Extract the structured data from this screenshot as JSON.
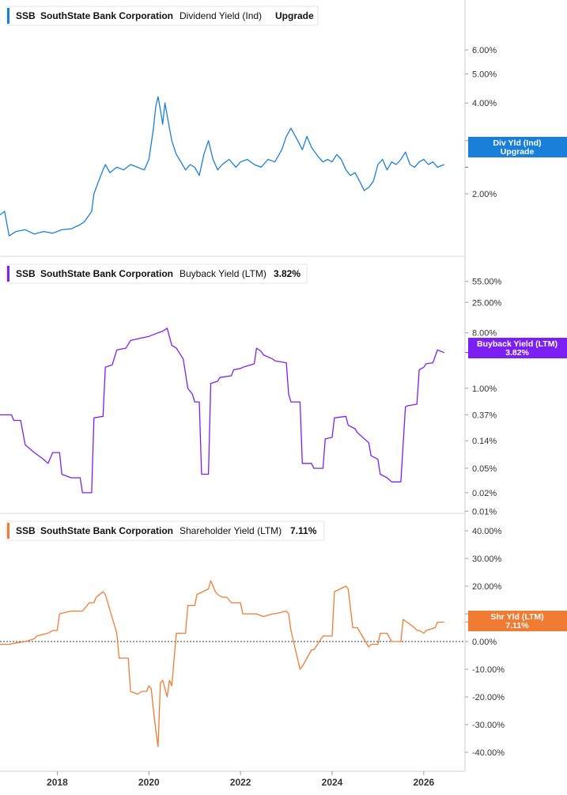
{
  "chart_data": [
    {
      "type": "line",
      "ticker": "SSB",
      "company": "SouthState Bank Corporation",
      "metric": "Dividend Yield (Ind)",
      "value_label": "Upgrade",
      "badge": [
        "Div Yld (Ind)",
        "Upgrade"
      ],
      "color": "#1a7fd9",
      "yscale": "log",
      "ylim": [
        1.35,
        6.9
      ],
      "y_ticks": [
        2,
        3,
        4,
        5,
        6
      ],
      "y_tick_labels": [
        "2.00%",
        "3.00%",
        "4.00%",
        "5.00%",
        "6.00%"
      ],
      "badge_value": 2.45,
      "series": [
        {
          "x": [
            2016.75,
            2016.85,
            2016.95,
            2017.1,
            2017.3,
            2017.5,
            2017.7,
            2017.9,
            2018.1,
            2018.3,
            2018.5,
            2018.6,
            2018.75,
            2018.8,
            2018.9,
            2019.0,
            2019.05,
            2019.15,
            2019.3,
            2019.45,
            2019.6,
            2019.75,
            2019.9,
            2020.0,
            2020.1,
            2020.15,
            2020.2,
            2020.25,
            2020.3,
            2020.35,
            2020.45,
            2020.5,
            2020.6,
            2020.7,
            2020.8,
            2020.9,
            2021.0,
            2021.1,
            2021.2,
            2021.3,
            2021.4,
            2021.5,
            2021.6,
            2021.75,
            2021.9,
            2022.0,
            2022.15,
            2022.3,
            2022.45,
            2022.6,
            2022.75,
            2022.9,
            2023.0,
            2023.1,
            2023.25,
            2023.35,
            2023.45,
            2023.55,
            2023.7,
            2023.8,
            2023.9,
            2024.0,
            2024.1,
            2024.2,
            2024.3,
            2024.4,
            2024.5,
            2024.6,
            2024.7,
            2024.8,
            2024.9,
            2025.0,
            2025.1,
            2025.2,
            2025.3,
            2025.4,
            2025.5,
            2025.6,
            2025.7,
            2025.8,
            2025.9,
            2026.0,
            2026.1,
            2026.2,
            2026.3,
            2026.45
          ],
          "y": [
            1.7,
            1.75,
            1.45,
            1.5,
            1.52,
            1.47,
            1.5,
            1.48,
            1.52,
            1.53,
            1.58,
            1.62,
            1.75,
            2.0,
            2.2,
            2.4,
            2.5,
            2.35,
            2.45,
            2.4,
            2.5,
            2.45,
            2.4,
            2.6,
            3.3,
            3.9,
            4.2,
            3.8,
            3.4,
            4.0,
            3.3,
            3.0,
            2.7,
            2.55,
            2.4,
            2.5,
            2.45,
            2.3,
            2.7,
            3.0,
            2.6,
            2.4,
            2.5,
            2.6,
            2.45,
            2.55,
            2.6,
            2.5,
            2.45,
            2.6,
            2.55,
            2.8,
            3.1,
            3.3,
            3.0,
            2.8,
            3.1,
            2.85,
            2.65,
            2.55,
            2.6,
            2.55,
            2.7,
            2.6,
            2.4,
            2.3,
            2.35,
            2.2,
            2.05,
            2.1,
            2.2,
            2.5,
            2.6,
            2.4,
            2.55,
            2.5,
            2.6,
            2.75,
            2.5,
            2.45,
            2.55,
            2.6,
            2.5,
            2.55,
            2.45,
            2.5
          ]
        }
      ]
    },
    {
      "type": "line",
      "ticker": "SSB",
      "company": "SouthState Bank Corporation",
      "metric": "Buyback Yield (LTM)",
      "value_label": "3.82%",
      "badge": [
        "Buyback Yield (LTM)",
        "3.82%"
      ],
      "color": "#7c1ff2",
      "yscale": "log",
      "ylim": [
        0.0095,
        80
      ],
      "y_ticks": [
        0.01,
        0.02,
        0.05,
        0.14,
        0.37,
        1.0,
        8.0,
        25.0,
        55.0
      ],
      "y_tick_labels": [
        "0.01%",
        "0.02%",
        "0.05%",
        "0.14%",
        "0.37%",
        "1.00%",
        "8.00%",
        "25.00%",
        "55.00%"
      ],
      "badge_value": 3.82,
      "series": [
        {
          "x": [
            2016.75,
            2017.0,
            2017.05,
            2017.2,
            2017.3,
            2017.5,
            2017.7,
            2017.8,
            2017.9,
            2018.05,
            2018.1,
            2018.3,
            2018.5,
            2018.55,
            2018.75,
            2018.8,
            2019.0,
            2019.05,
            2019.2,
            2019.3,
            2019.5,
            2019.6,
            2019.8,
            2020.0,
            2020.2,
            2020.3,
            2020.4,
            2020.5,
            2020.6,
            2020.75,
            2020.85,
            2020.95,
            2021.0,
            2021.1,
            2021.15,
            2021.3,
            2021.35,
            2021.5,
            2021.55,
            2021.8,
            2021.85,
            2022.0,
            2022.05,
            2022.3,
            2022.35,
            2022.45,
            2022.5,
            2022.7,
            2022.75,
            2023.0,
            2023.05,
            2023.1,
            2023.3,
            2023.35,
            2023.55,
            2023.6,
            2023.8,
            2023.85,
            2024.0,
            2024.05,
            2024.3,
            2024.35,
            2024.5,
            2024.55,
            2024.8,
            2024.85,
            2025.0,
            2025.05,
            2025.2,
            2025.3,
            2025.5,
            2025.6,
            2025.65,
            2025.85,
            2025.9,
            2026.0,
            2026.05,
            2026.2,
            2026.3,
            2026.45
          ],
          "y": [
            0.37,
            0.37,
            0.3,
            0.3,
            0.12,
            0.09,
            0.07,
            0.06,
            0.09,
            0.09,
            0.04,
            0.035,
            0.035,
            0.02,
            0.02,
            0.33,
            0.35,
            2.2,
            2.4,
            4.2,
            4.5,
            6.0,
            6.5,
            7.0,
            8.0,
            8.5,
            9.5,
            5.0,
            4.5,
            3.0,
            1.0,
            0.8,
            0.6,
            0.6,
            0.04,
            0.04,
            1.2,
            1.3,
            1.5,
            1.6,
            2.0,
            2.1,
            2.2,
            2.5,
            4.5,
            4.0,
            3.5,
            3.0,
            2.8,
            2.6,
            0.8,
            0.6,
            0.6,
            0.06,
            0.06,
            0.05,
            0.05,
            0.15,
            0.16,
            0.33,
            0.35,
            0.25,
            0.22,
            0.19,
            0.13,
            0.08,
            0.07,
            0.04,
            0.035,
            0.03,
            0.03,
            0.5,
            0.52,
            0.55,
            2.0,
            2.2,
            2.5,
            2.6,
            4.2,
            3.8
          ]
        }
      ]
    },
    {
      "type": "line",
      "ticker": "SSB",
      "company": "SouthState Bank Corporation",
      "metric": "Shareholder Yield (LTM)",
      "value_label": "7.11%",
      "badge": [
        "Shr Yld (LTM)",
        "7.11%"
      ],
      "color": "#f07b32",
      "yscale": "linear",
      "ylim": [
        -42,
        42
      ],
      "y_ticks": [
        -40,
        -30,
        -20,
        -10,
        0,
        10,
        20,
        30,
        40
      ],
      "y_tick_labels": [
        "-40.00%",
        "-30.00%",
        "-20.00%",
        "-10.00%",
        "0.00%",
        "10.00%",
        "20.00%",
        "30.00%",
        "40.00%"
      ],
      "badge_value": 7.11,
      "zero_line": true,
      "series": [
        {
          "x": [
            2016.75,
            2016.95,
            2017.1,
            2017.3,
            2017.5,
            2017.55,
            2017.8,
            2017.9,
            2018.0,
            2018.05,
            2018.3,
            2018.35,
            2018.55,
            2018.7,
            2018.8,
            2018.85,
            2019.0,
            2019.05,
            2019.3,
            2019.35,
            2019.55,
            2019.6,
            2019.75,
            2019.85,
            2019.95,
            2020.0,
            2020.05,
            2020.1,
            2020.15,
            2020.2,
            2020.25,
            2020.3,
            2020.4,
            2020.45,
            2020.5,
            2020.6,
            2020.8,
            2020.85,
            2021.0,
            2021.05,
            2021.3,
            2021.35,
            2021.45,
            2021.5,
            2021.6,
            2021.7,
            2021.8,
            2022.0,
            2022.05,
            2022.3,
            2022.35,
            2022.5,
            2022.7,
            2022.75,
            2023.0,
            2023.05,
            2023.1,
            2023.3,
            2023.35,
            2023.55,
            2023.6,
            2023.8,
            2023.85,
            2024.0,
            2024.05,
            2024.3,
            2024.35,
            2024.45,
            2024.55,
            2024.8,
            2024.85,
            2025.0,
            2025.05,
            2025.2,
            2025.3,
            2025.5,
            2025.55,
            2025.8,
            2025.85,
            2025.9,
            2026.0,
            2026.05,
            2026.25,
            2026.3,
            2026.45
          ],
          "y": [
            -1,
            -1,
            -0.5,
            0,
            1,
            2,
            3,
            4,
            4,
            10,
            11,
            11,
            11,
            14,
            14,
            16,
            18,
            17,
            3,
            -6,
            -6,
            -18,
            -19,
            -18,
            -18,
            -16,
            -17,
            -25,
            -32,
            -38,
            -15,
            -14,
            -20,
            -14,
            -16,
            3,
            3,
            13,
            13,
            17,
            19,
            22,
            18,
            17,
            16,
            16,
            14,
            14,
            10,
            10,
            10,
            9,
            10,
            10,
            11,
            10,
            4,
            -10,
            -9,
            -3,
            -3,
            2,
            2,
            2,
            18,
            20,
            19,
            5,
            5,
            -2,
            -1,
            -1,
            3,
            3,
            0,
            0,
            8,
            5,
            4,
            4,
            3,
            4,
            5,
            7,
            7
          ]
        }
      ]
    }
  ],
  "x_axis": {
    "ticks": [
      2018,
      2020,
      2022,
      2024,
      2026
    ],
    "tick_labels": [
      "2018",
      "2020",
      "2022",
      "2024",
      "2026"
    ],
    "range": [
      2016.75,
      2026.9
    ]
  }
}
